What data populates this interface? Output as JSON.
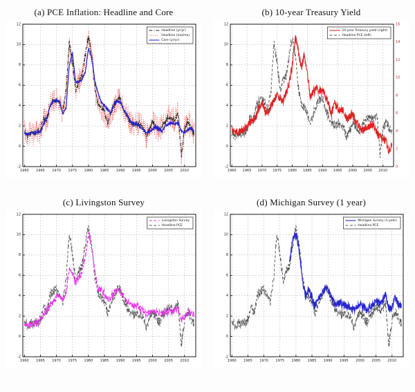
{
  "page": {
    "background": "#fdfdfd"
  },
  "shared_series": {
    "headline_pce": [
      1.4,
      1.0,
      1.3,
      1.2,
      1.4,
      1.6,
      2.8,
      2.5,
      4.0,
      4.5,
      4.6,
      4.2,
      3.4,
      5.5,
      10.2,
      8.1,
      5.5,
      6.4,
      7.0,
      9.0,
      10.7,
      9.0,
      5.8,
      4.1,
      3.8,
      3.4,
      2.2,
      3.3,
      4.0,
      4.6,
      4.7,
      3.5,
      3.0,
      2.4,
      2.1,
      2.2,
      2.2,
      1.9,
      0.9,
      1.6,
      2.5,
      2.0,
      1.4,
      2.0,
      2.4,
      2.9,
      2.7,
      2.6,
      3.3,
      -0.9,
      1.7,
      2.5,
      1.8,
      1.2
    ],
    "core_pce": [
      1.3,
      1.2,
      1.3,
      1.3,
      1.4,
      1.4,
      2.2,
      2.8,
      4.0,
      4.4,
      4.5,
      4.4,
      3.2,
      3.8,
      8.0,
      9.1,
      6.3,
      6.3,
      6.6,
      7.3,
      9.6,
      8.7,
      6.4,
      5.2,
      4.3,
      4.0,
      3.6,
      3.3,
      4.2,
      4.4,
      4.3,
      3.6,
      3.1,
      2.5,
      2.2,
      2.2,
      1.9,
      1.7,
      1.4,
      1.4,
      1.7,
      1.9,
      1.7,
      1.5,
      2.0,
      2.2,
      2.3,
      2.2,
      2.3,
      1.5,
      1.3,
      1.6,
      1.8,
      1.5
    ],
    "treasury_10y": [
      4.1,
      3.9,
      3.9,
      4.0,
      4.2,
      4.3,
      4.9,
      5.1,
      5.6,
      6.7,
      7.3,
      6.2,
      6.2,
      6.8,
      7.6,
      8.0,
      7.6,
      7.4,
      8.4,
      9.4,
      11.4,
      14.6,
      13.0,
      11.1,
      12.4,
      10.6,
      7.7,
      8.4,
      8.8,
      8.5,
      8.6,
      7.9,
      7.0,
      5.9,
      7.1,
      6.6,
      6.4,
      6.4,
      5.3,
      5.6,
      6.0,
      5.0,
      4.6,
      4.0,
      4.3,
      4.3,
      4.8,
      4.6,
      3.7,
      3.3,
      3.2,
      2.8,
      1.8,
      2.4
    ],
    "livingston": [
      1.2,
      1.1,
      1.2,
      1.2,
      1.3,
      1.6,
      2.2,
      2.6,
      3.0,
      3.4,
      3.8,
      4.0,
      3.6,
      4.2,
      6.8,
      6.2,
      5.3,
      5.8,
      6.4,
      8.0,
      10.0,
      8.8,
      6.5,
      4.6,
      4.6,
      4.2,
      3.6,
      3.8,
      4.2,
      4.6,
      4.4,
      3.9,
      3.4,
      3.2,
      3.0,
      3.0,
      2.8,
      2.6,
      2.2,
      2.3,
      2.5,
      2.4,
      2.2,
      2.3,
      2.4,
      2.5,
      2.5,
      2.6,
      2.8,
      1.6,
      1.8,
      2.4,
      2.3,
      2.2
    ],
    "michigan_1y": [
      null,
      null,
      null,
      null,
      null,
      null,
      null,
      null,
      null,
      null,
      null,
      null,
      null,
      null,
      null,
      null,
      null,
      null,
      7.3,
      9.7,
      10.0,
      8.6,
      5.4,
      3.9,
      4.7,
      3.8,
      3.0,
      3.8,
      4.2,
      4.6,
      4.7,
      3.9,
      3.3,
      3.2,
      3.2,
      3.1,
      3.0,
      2.9,
      2.6,
      2.8,
      3.1,
      2.9,
      2.6,
      2.8,
      3.1,
      3.4,
      3.3,
      3.3,
      4.3,
      2.6,
      2.9,
      3.9,
      3.2,
      3.1
    ]
  },
  "chart_data": [
    {
      "id": "a",
      "type": "line",
      "title": "(a) PCE Inflation: Headline and Core",
      "x_start": 1960,
      "xlim": [
        1959.5,
        2013.5
      ],
      "ylim": [
        -2,
        12
      ],
      "ytick_step": 2,
      "xticks": [
        1960,
        1965,
        1970,
        1975,
        1980,
        1985,
        1990,
        1995,
        2000,
        2005,
        2010
      ],
      "series": [
        {
          "name": "Headline PCE monthly",
          "values_key": "headline_pce",
          "color": "#e23a3a",
          "dash": "dot",
          "width": 0.7,
          "jitter": 1.25
        },
        {
          "name": "Headline (yr/yr)",
          "values_key": "headline_pce",
          "color": "#1a1a1a",
          "dash": "dashdot",
          "width": 1.0,
          "jitter": 0.2
        },
        {
          "name": "Core (yr/yr)",
          "values_key": "core_pce",
          "color": "#2626cc",
          "dash": "solid",
          "width": 1.3,
          "jitter": 0.1
        }
      ],
      "legend": [
        {
          "label": "Headline (yr/yr)",
          "color": "#1a1a1a",
          "dash": "dashdot"
        },
        {
          "label": "Headline (mo/mo)",
          "color": "#e23a3a",
          "dash": "dot"
        },
        {
          "label": "Core (yr/yr)",
          "color": "#2626cc",
          "dash": "solid"
        }
      ]
    },
    {
      "id": "b",
      "type": "line",
      "title": "(b) 10-year Treasury Yield",
      "x_start": 1960,
      "xlim": [
        1959.5,
        2013.5
      ],
      "ylim": [
        -2,
        12
      ],
      "ytick_step": 2,
      "xticks": [
        1960,
        1965,
        1970,
        1975,
        1980,
        1985,
        1990,
        1995,
        2000,
        2005,
        2010
      ],
      "right_axis": {
        "ylim": [
          0,
          16
        ],
        "tick_step": 2,
        "color": "#cc2a2a"
      },
      "series": [
        {
          "name": "Headline PCE (left)",
          "values_key": "headline_pce",
          "color": "#555555",
          "dash": "dash",
          "width": 0.9,
          "jitter": 0.45
        },
        {
          "name": "10-year Treasury yield (right)",
          "values_key": "treasury_10y",
          "axis": "right",
          "color": "#dd2222",
          "dash": "solid",
          "width": 1.1,
          "jitter": 0.45
        }
      ],
      "legend": [
        {
          "label": "10-year Treasury yield (right)",
          "color": "#dd2222",
          "dash": "solid"
        },
        {
          "label": "Headline PCE (left)",
          "color": "#555555",
          "dash": "dash"
        }
      ]
    },
    {
      "id": "c",
      "type": "line",
      "title": "(c) Livingston Survey",
      "x_start": 1960,
      "xlim": [
        1959.5,
        2013.5
      ],
      "ylim": [
        -2,
        12
      ],
      "ytick_step": 2,
      "xticks": [
        1960,
        1965,
        1970,
        1975,
        1980,
        1985,
        1990,
        1995,
        2000,
        2005,
        2010
      ],
      "series": [
        {
          "name": "Headline PCE",
          "values_key": "headline_pce",
          "color": "#555555",
          "dash": "dash",
          "width": 0.9,
          "jitter": 0.45
        },
        {
          "name": "Livingston Survey",
          "values_key": "livingston",
          "color": "#ec2fec",
          "dash": "dash",
          "width": 1.2,
          "jitter": 0.3
        }
      ],
      "legend": [
        {
          "label": "Livingston Survey",
          "color": "#ec2fec",
          "dash": "dash"
        },
        {
          "label": "Headline PCE",
          "color": "#555555",
          "dash": "dash"
        }
      ]
    },
    {
      "id": "d",
      "type": "line",
      "title": "(d) Michigan Survey (1 year)",
      "x_start": 1960,
      "xlim": [
        1959.5,
        2013.5
      ],
      "ylim": [
        -2,
        12
      ],
      "ytick_step": 2,
      "xticks": [
        1960,
        1965,
        1970,
        1975,
        1980,
        1985,
        1990,
        1995,
        2000,
        2005,
        2010
      ],
      "series": [
        {
          "name": "Headline PCE",
          "values_key": "headline_pce",
          "color": "#555555",
          "dash": "dash",
          "width": 0.9,
          "jitter": 0.45
        },
        {
          "name": "Michigan Survey (1-year)",
          "values_key": "michigan_1y",
          "color": "#2626cc",
          "dash": "solid",
          "width": 1.2,
          "jitter": 0.35
        }
      ],
      "legend": [
        {
          "label": "Michigan Survey (1-year)",
          "color": "#2626cc",
          "dash": "solid"
        },
        {
          "label": "Headline PCE",
          "color": "#555555",
          "dash": "dash"
        }
      ]
    }
  ]
}
